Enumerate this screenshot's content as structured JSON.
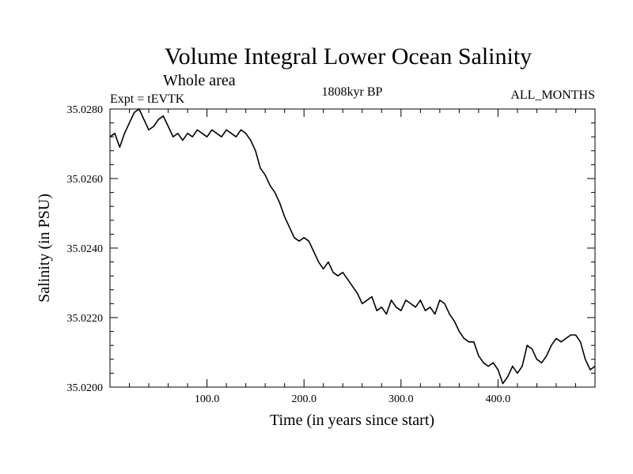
{
  "chart_data": {
    "type": "line",
    "title": "Volume Integral Lower Ocean Salinity",
    "subtitle": "Whole area",
    "annotations": {
      "left": "Expt = tEVTK",
      "center": "1808kyr BP",
      "right": "ALL_MONTHS"
    },
    "xlabel": "Time (in years since start)",
    "ylabel": "Salinity (in PSU)",
    "xlim": [
      0,
      500
    ],
    "ylim": [
      35.02,
      35.028
    ],
    "xticks": [
      {
        "value": 100,
        "label": "100.0"
      },
      {
        "value": 200,
        "label": "200.0"
      },
      {
        "value": 300,
        "label": "300.0"
      },
      {
        "value": 400,
        "label": "400.0"
      }
    ],
    "yticks": [
      {
        "value": 35.02,
        "label": "35.0200"
      },
      {
        "value": 35.022,
        "label": "35.0220"
      },
      {
        "value": 35.024,
        "label": "35.0240"
      },
      {
        "value": 35.026,
        "label": "35.0260"
      },
      {
        "value": 35.028,
        "label": "35.0280"
      }
    ],
    "series": [
      {
        "name": "Salinity",
        "color": "#000000",
        "x": [
          0,
          5,
          10,
          15,
          20,
          25,
          30,
          35,
          40,
          45,
          50,
          55,
          60,
          65,
          70,
          75,
          80,
          85,
          90,
          95,
          100,
          105,
          110,
          115,
          120,
          125,
          130,
          135,
          140,
          145,
          150,
          155,
          160,
          165,
          170,
          175,
          180,
          185,
          190,
          195,
          200,
          205,
          210,
          215,
          220,
          225,
          230,
          235,
          240,
          245,
          250,
          255,
          260,
          265,
          270,
          275,
          280,
          285,
          290,
          295,
          300,
          305,
          310,
          315,
          320,
          325,
          330,
          335,
          340,
          345,
          350,
          355,
          360,
          365,
          370,
          375,
          380,
          385,
          390,
          395,
          400,
          405,
          410,
          415,
          420,
          425,
          430,
          435,
          440,
          445,
          450,
          455,
          460,
          465,
          470,
          475,
          480,
          485,
          490,
          495,
          500
        ],
        "values": [
          35.0272,
          35.0273,
          35.0269,
          35.0273,
          35.0276,
          35.0279,
          35.028,
          35.0277,
          35.0274,
          35.0275,
          35.0277,
          35.0278,
          35.0275,
          35.0272,
          35.0273,
          35.0271,
          35.0273,
          35.0272,
          35.0274,
          35.0273,
          35.0272,
          35.0274,
          35.0273,
          35.0272,
          35.0274,
          35.0273,
          35.0272,
          35.0274,
          35.0273,
          35.0271,
          35.0268,
          35.0263,
          35.0261,
          35.0258,
          35.0256,
          35.0253,
          35.0249,
          35.0246,
          35.0243,
          35.0242,
          35.0243,
          35.0242,
          35.0239,
          35.0236,
          35.0234,
          35.0236,
          35.0233,
          35.0232,
          35.0233,
          35.0231,
          35.0229,
          35.0227,
          35.0224,
          35.0225,
          35.0226,
          35.0222,
          35.0223,
          35.0221,
          35.0225,
          35.0223,
          35.0222,
          35.0225,
          35.0224,
          35.0223,
          35.0225,
          35.0222,
          35.0223,
          35.0221,
          35.0225,
          35.0224,
          35.0221,
          35.0219,
          35.0216,
          35.0214,
          35.0213,
          35.0213,
          35.0209,
          35.0207,
          35.0206,
          35.0207,
          35.0205,
          35.0201,
          35.0203,
          35.0206,
          35.0204,
          35.0206,
          35.0212,
          35.0211,
          35.0208,
          35.0207,
          35.0209,
          35.0212,
          35.0214,
          35.0213,
          35.0214,
          35.0215,
          35.0215,
          35.0213,
          35.0208,
          35.0205,
          35.0206
        ]
      }
    ]
  }
}
